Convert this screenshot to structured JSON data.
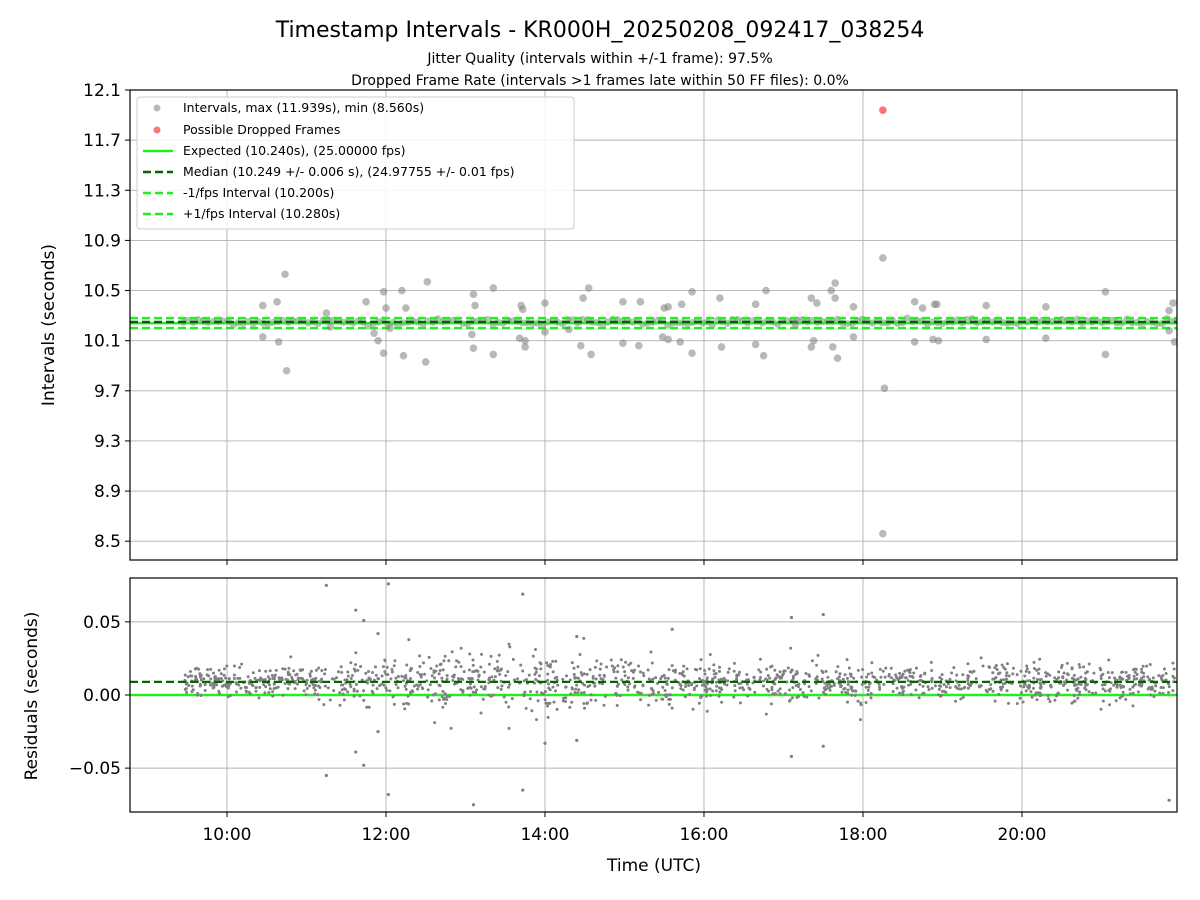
{
  "chart_data": [
    {
      "type": "scatter",
      "title": "Timestamp Intervals - KR000H_20250208_092417_038254",
      "subtitle_lines": [
        "Jitter Quality (intervals within +/-1 frame): 97.5%",
        "Dropped Frame Rate (intervals >1 frames late within 50 FF files): 0.0%"
      ],
      "xlabel": "",
      "ylabel": "Intervals (seconds)",
      "xlim_hours": [
        8.78,
        21.95
      ],
      "ylim": [
        8.35,
        12.1
      ],
      "yticks": [
        8.5,
        8.9,
        9.3,
        9.7,
        10.1,
        10.5,
        10.9,
        11.3,
        11.7,
        12.1
      ],
      "ytick_labels": [
        "8.5",
        "8.9",
        "9.3",
        "9.7",
        "10.1",
        "10.5",
        "10.9",
        "11.3",
        "11.7",
        "12.1"
      ],
      "xticks_hours": [
        10,
        12,
        14,
        16,
        18,
        20
      ],
      "grid": true,
      "legend_position": "upper-left",
      "legend": [
        "Intervals, max (11.939s), min (8.560s)",
        "Possible Dropped Frames",
        "Expected (10.240s), (25.00000 fps)",
        "Median (10.249 +/- 0.006 s), (24.97755 +/- 0.01 fps)",
        "-1/fps Interval (10.200s)",
        "+1/fps Interval (10.280s)"
      ],
      "reference_lines": {
        "expected": 10.24,
        "median": 10.249,
        "minus_one_frame": 10.2,
        "plus_one_frame": 10.28
      },
      "band_points": {
        "x_start_hours": 9.45,
        "x_end_hours": 21.95,
        "center": 10.25
      },
      "interval_outliers": [
        [
          10.45,
          10.38
        ],
        [
          10.45,
          10.13
        ],
        [
          10.63,
          10.41
        ],
        [
          10.65,
          10.09
        ],
        [
          10.73,
          10.63
        ],
        [
          10.75,
          9.86
        ],
        [
          11.25,
          10.32
        ],
        [
          11.3,
          10.21
        ],
        [
          11.75,
          10.41
        ],
        [
          11.85,
          10.16
        ],
        [
          11.9,
          10.1
        ],
        [
          11.97,
          10.49
        ],
        [
          11.97,
          10.0
        ],
        [
          12.0,
          10.36
        ],
        [
          12.05,
          10.2
        ],
        [
          12.2,
          10.5
        ],
        [
          12.25,
          10.36
        ],
        [
          12.22,
          9.98
        ],
        [
          12.5,
          9.93
        ],
        [
          12.52,
          10.57
        ],
        [
          13.1,
          10.47
        ],
        [
          13.12,
          10.38
        ],
        [
          13.08,
          10.15
        ],
        [
          13.1,
          10.04
        ],
        [
          13.35,
          10.52
        ],
        [
          13.35,
          9.99
        ],
        [
          13.7,
          10.38
        ],
        [
          13.72,
          10.35
        ],
        [
          13.68,
          10.12
        ],
        [
          13.75,
          10.1
        ],
        [
          13.75,
          10.05
        ],
        [
          14.0,
          10.4
        ],
        [
          14.0,
          10.17
        ],
        [
          14.3,
          10.19
        ],
        [
          14.48,
          10.44
        ],
        [
          14.55,
          10.52
        ],
        [
          14.45,
          10.06
        ],
        [
          14.58,
          9.99
        ],
        [
          14.98,
          10.41
        ],
        [
          14.98,
          10.08
        ],
        [
          15.2,
          10.41
        ],
        [
          15.18,
          10.06
        ],
        [
          15.5,
          10.36
        ],
        [
          15.55,
          10.37
        ],
        [
          15.48,
          10.13
        ],
        [
          15.55,
          10.11
        ],
        [
          15.72,
          10.39
        ],
        [
          15.7,
          10.09
        ],
        [
          15.85,
          10.49
        ],
        [
          15.85,
          10.0
        ],
        [
          16.2,
          10.44
        ],
        [
          16.22,
          10.05
        ],
        [
          16.65,
          10.39
        ],
        [
          16.65,
          10.07
        ],
        [
          16.78,
          10.5
        ],
        [
          16.75,
          9.98
        ],
        [
          17.15,
          10.23
        ],
        [
          17.35,
          10.44
        ],
        [
          17.42,
          10.4
        ],
        [
          17.38,
          10.1
        ],
        [
          17.35,
          10.05
        ],
        [
          17.6,
          10.5
        ],
        [
          17.65,
          10.56
        ],
        [
          17.65,
          10.44
        ],
        [
          17.62,
          10.05
        ],
        [
          17.68,
          9.96
        ],
        [
          17.88,
          10.37
        ],
        [
          17.88,
          10.13
        ],
        [
          18.25,
          10.76
        ],
        [
          18.27,
          9.72
        ],
        [
          18.25,
          8.56
        ],
        [
          18.65,
          10.41
        ],
        [
          18.65,
          10.09
        ],
        [
          18.75,
          10.36
        ],
        [
          18.9,
          10.39
        ],
        [
          18.93,
          10.39
        ],
        [
          18.88,
          10.11
        ],
        [
          18.95,
          10.1
        ],
        [
          19.55,
          10.38
        ],
        [
          19.55,
          10.11
        ],
        [
          20.3,
          10.37
        ],
        [
          20.3,
          10.12
        ],
        [
          21.05,
          10.49
        ],
        [
          21.05,
          9.99
        ],
        [
          21.85,
          10.34
        ],
        [
          21.9,
          10.4
        ],
        [
          21.85,
          10.18
        ],
        [
          21.92,
          10.09
        ]
      ],
      "dropped_frames": [
        [
          18.25,
          11.939
        ]
      ]
    },
    {
      "type": "scatter",
      "title": "",
      "xlabel": "Time (UTC)",
      "ylabel": "Residuals (seconds)",
      "xlim_hours": [
        8.78,
        21.95
      ],
      "ylim": [
        -0.08,
        0.08
      ],
      "yticks": [
        -0.05,
        0.0,
        0.05
      ],
      "ytick_labels": [
        "−0.05",
        "0.00",
        "0.05"
      ],
      "xticks_hours": [
        10,
        12,
        14,
        16,
        18,
        20
      ],
      "xtick_labels": [
        "10:00",
        "12:00",
        "14:00",
        "16:00",
        "18:00",
        "20:00"
      ],
      "grid": true,
      "reference_lines": {
        "expected": 0.0,
        "median": 0.009
      },
      "residual_outliers": [
        [
          11.25,
          0.075
        ],
        [
          11.62,
          0.058
        ],
        [
          12.03,
          0.076
        ],
        [
          11.72,
          0.051
        ],
        [
          11.9,
          0.042
        ],
        [
          11.25,
          -0.055
        ],
        [
          11.62,
          -0.039
        ],
        [
          11.72,
          -0.048
        ],
        [
          12.03,
          -0.068
        ],
        [
          11.9,
          -0.025
        ],
        [
          13.1,
          -0.075
        ],
        [
          13.72,
          0.069
        ],
        [
          13.72,
          -0.065
        ],
        [
          14.0,
          -0.033
        ],
        [
          14.4,
          -0.031
        ],
        [
          14.4,
          0.04
        ],
        [
          15.6,
          0.045
        ],
        [
          17.1,
          0.053
        ],
        [
          17.1,
          -0.042
        ],
        [
          17.5,
          0.055
        ],
        [
          17.5,
          -0.035
        ],
        [
          21.85,
          -0.072
        ]
      ]
    }
  ],
  "colors": {
    "interval_points": "#808080",
    "dropped": "#ff5a5a",
    "expected": "#22ee22",
    "median": "#006600",
    "fps_bounds": "#22ee22",
    "grid": "#b0b0b0"
  }
}
